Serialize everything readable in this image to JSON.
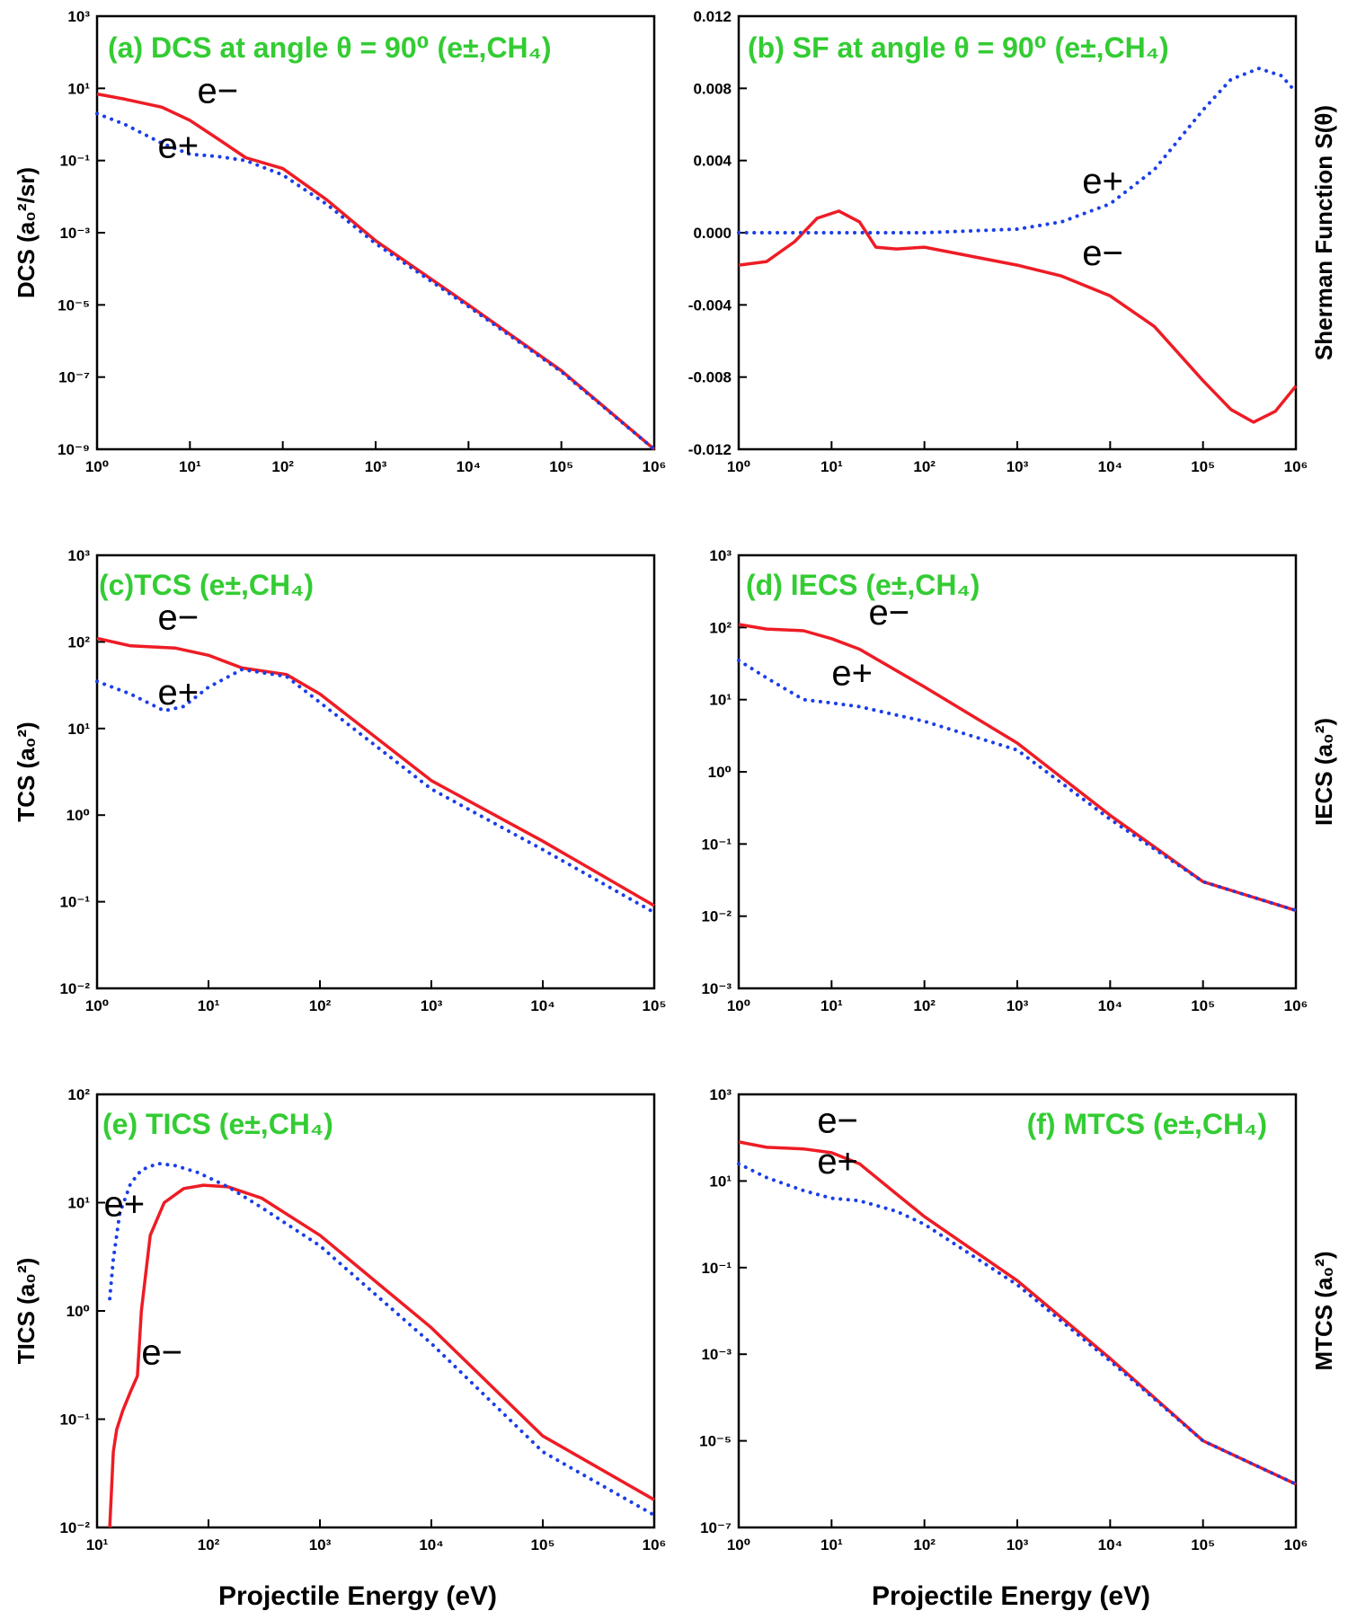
{
  "figure": {
    "x_axis_title": "Projectile Energy (eV)"
  },
  "colors": {
    "electron_line": "#ee1c25",
    "positron_line": "#1a3ee8",
    "title_green": "#33cc33",
    "theta_teal": "#1aa3a3"
  },
  "chart_data": [
    {
      "id": "a",
      "type": "line",
      "title": "(a) DCS at angle θ = 90⁰ (e±,CH₄)",
      "ylabel": "DCS (a₀²/sr)",
      "xlabel": "",
      "x_scale": "log",
      "y_scale": "log",
      "xlim": [
        1,
        1000000
      ],
      "ylim": [
        1e-09,
        1000
      ],
      "x_ticks": [
        1,
        10,
        100,
        1000,
        10000,
        100000,
        1000000
      ],
      "y_ticks": [
        1e-09,
        1e-07,
        1e-05,
        0.001,
        0.1,
        10,
        1000
      ],
      "series": [
        {
          "name": "e−",
          "style": "solid",
          "x": [
            1,
            2,
            5,
            10,
            20,
            40,
            100,
            300,
            1000,
            10000,
            100000,
            1000000
          ],
          "y": [
            7,
            5,
            3,
            1.3,
            0.4,
            0.12,
            0.06,
            0.008,
            0.0006,
            1e-05,
            1.5e-07,
            1e-09
          ]
        },
        {
          "name": "e+",
          "style": "dotted",
          "x": [
            1,
            2,
            5,
            10,
            20,
            40,
            100,
            300,
            1000,
            10000,
            100000,
            1000000
          ],
          "y": [
            2,
            1,
            0.3,
            0.15,
            0.13,
            0.1,
            0.04,
            0.006,
            0.0005,
            9e-06,
            1.4e-07,
            1e-09
          ]
        }
      ],
      "annotations": [
        {
          "text": "e−",
          "x": 12,
          "y": 4
        },
        {
          "text": "e+",
          "x": 4.5,
          "y": 0.12
        }
      ]
    },
    {
      "id": "b",
      "type": "line",
      "title": "(b) SF at angle θ = 90⁰ (e±,CH₄)",
      "ylabel": "Sherman Function S(θ)",
      "xlabel": "",
      "x_scale": "log",
      "y_scale": "linear",
      "xlim": [
        1,
        1000000
      ],
      "ylim": [
        -0.012,
        0.012
      ],
      "x_ticks": [
        1,
        10,
        100,
        1000,
        10000,
        100000,
        1000000
      ],
      "y_ticks": [
        -0.012,
        -0.008,
        -0.004,
        0.0,
        0.004,
        0.008,
        0.012
      ],
      "y_tick_labels": [
        "-0.012",
        "-0.008",
        "-0.004",
        "0.000",
        "0.004",
        "0.008",
        "0.012"
      ],
      "series": [
        {
          "name": "e−",
          "style": "solid",
          "x": [
            1,
            2,
            4,
            7,
            12,
            20,
            30,
            50,
            100,
            200,
            500,
            1000,
            3000,
            10000,
            30000,
            100000,
            200000,
            350000,
            600000,
            1000000
          ],
          "y": [
            -0.0018,
            -0.0016,
            -0.0005,
            0.0008,
            0.0012,
            0.0006,
            -0.0008,
            -0.0009,
            -0.0008,
            -0.0011,
            -0.0015,
            -0.0018,
            -0.0024,
            -0.0035,
            -0.0052,
            -0.0082,
            -0.0098,
            -0.0105,
            -0.0099,
            -0.0085
          ]
        },
        {
          "name": "e+",
          "style": "dotted",
          "x": [
            1,
            10,
            100,
            1000,
            3000,
            10000,
            30000,
            100000,
            200000,
            400000,
            700000,
            1000000
          ],
          "y": [
            0.0,
            0.0,
            0.0,
            0.0002,
            0.0006,
            0.0016,
            0.0035,
            0.0068,
            0.0085,
            0.0091,
            0.0087,
            0.0078
          ]
        }
      ],
      "annotations": [
        {
          "text": "e+",
          "x": 5000,
          "y": 0.0022
        },
        {
          "text": "e−",
          "x": 5000,
          "y": -0.0018
        }
      ]
    },
    {
      "id": "c",
      "type": "line",
      "title": "(c)TCS (e±,CH₄)",
      "ylabel": "TCS (a₀²)",
      "xlabel": "",
      "x_scale": "log",
      "y_scale": "log",
      "xlim": [
        1,
        100000
      ],
      "ylim": [
        0.01,
        1000
      ],
      "x_ticks": [
        1,
        10,
        100,
        1000,
        10000,
        100000
      ],
      "y_ticks": [
        0.01,
        0.1,
        1,
        10,
        100,
        1000
      ],
      "series": [
        {
          "name": "e−",
          "style": "solid",
          "x": [
            1,
            2,
            5,
            10,
            20,
            50,
            100,
            1000,
            10000,
            100000
          ],
          "y": [
            110,
            90,
            85,
            70,
            50,
            42,
            25,
            2.5,
            0.5,
            0.09
          ]
        },
        {
          "name": "e+",
          "style": "dotted",
          "x": [
            1,
            2,
            4,
            6,
            10,
            20,
            50,
            100,
            1000,
            10000,
            100000
          ],
          "y": [
            35,
            25,
            16,
            18,
            30,
            48,
            40,
            20,
            2,
            0.4,
            0.075
          ]
        }
      ],
      "annotations": [
        {
          "text": "e−",
          "x": 3.5,
          "y": 140
        },
        {
          "text": "e+",
          "x": 3.5,
          "y": 19
        }
      ]
    },
    {
      "id": "d",
      "type": "line",
      "title": "(d) IECS (e±,CH₄)",
      "ylabel": "IECS (a₀²)",
      "xlabel": "",
      "x_scale": "log",
      "y_scale": "log",
      "xlim": [
        1,
        1000000
      ],
      "ylim": [
        0.001,
        1000
      ],
      "x_ticks": [
        1,
        10,
        100,
        1000,
        10000,
        100000,
        1000000
      ],
      "y_ticks": [
        0.001,
        0.01,
        0.1,
        1,
        10,
        100,
        1000
      ],
      "series": [
        {
          "name": "e−",
          "style": "solid",
          "x": [
            1,
            2,
            5,
            10,
            20,
            100,
            1000,
            10000,
            100000,
            1000000
          ],
          "y": [
            110,
            95,
            90,
            70,
            50,
            15,
            2.5,
            0.25,
            0.03,
            0.012
          ]
        },
        {
          "name": "e+",
          "style": "dotted",
          "x": [
            1,
            2,
            5,
            10,
            20,
            100,
            1000,
            10000,
            100000,
            1000000
          ],
          "y": [
            35,
            20,
            10,
            9,
            8,
            5,
            2,
            0.22,
            0.03,
            0.012
          ]
        }
      ],
      "annotations": [
        {
          "text": "e−",
          "x": 25,
          "y": 110
        },
        {
          "text": "e+",
          "x": 10,
          "y": 16
        }
      ]
    },
    {
      "id": "e",
      "type": "line",
      "title": "(e) TICS (e±,CH₄)",
      "ylabel": "TICS (a₀²)",
      "xlabel": "Projectile Energy (eV)",
      "x_scale": "log",
      "y_scale": "log",
      "xlim": [
        10,
        1000000
      ],
      "ylim": [
        0.01,
        100
      ],
      "x_ticks": [
        10,
        100,
        1000,
        10000,
        100000,
        1000000
      ],
      "y_ticks": [
        0.01,
        0.1,
        1,
        10,
        100
      ],
      "series": [
        {
          "name": "e−",
          "style": "solid",
          "x": [
            13,
            14,
            15,
            17,
            20,
            23,
            25,
            30,
            40,
            60,
            90,
            150,
            300,
            1000,
            10000,
            100000,
            1000000
          ],
          "y": [
            0.01,
            0.05,
            0.08,
            0.12,
            0.18,
            0.25,
            1,
            5,
            10,
            13.5,
            14.5,
            14,
            11,
            5,
            0.7,
            0.07,
            0.018
          ]
        },
        {
          "name": "e+",
          "style": "dotted",
          "x": [
            13,
            14,
            16,
            20,
            25,
            35,
            50,
            80,
            150,
            300,
            1000,
            10000,
            100000,
            1000000
          ],
          "y": [
            1.3,
            3,
            8,
            15,
            20,
            23,
            22,
            19,
            14,
            9,
            4,
            0.5,
            0.05,
            0.013
          ]
        }
      ],
      "annotations": [
        {
          "text": "e+",
          "x": 11.5,
          "y": 7.5
        },
        {
          "text": "e−",
          "x": 25,
          "y": 0.32
        }
      ]
    },
    {
      "id": "f",
      "type": "line",
      "title": "(f) MTCS (e±,CH₄)",
      "ylabel": "MTCS (a₀²)",
      "xlabel": "Projectile Energy (eV)",
      "x_scale": "log",
      "y_scale": "log",
      "xlim": [
        1,
        1000000
      ],
      "ylim": [
        1e-07,
        1000
      ],
      "x_ticks": [
        1,
        10,
        100,
        1000,
        10000,
        100000,
        1000000
      ],
      "y_ticks": [
        1e-07,
        1e-05,
        0.001,
        0.1,
        10,
        1000
      ],
      "series": [
        {
          "name": "e−",
          "style": "solid",
          "x": [
            1,
            2,
            5,
            10,
            20,
            50,
            100,
            1000,
            10000,
            100000,
            1000000
          ],
          "y": [
            80,
            60,
            55,
            45,
            25,
            5,
            1.5,
            0.05,
            0.0008,
            1e-05,
            1e-06
          ]
        },
        {
          "name": "e+",
          "style": "dotted",
          "x": [
            1,
            2,
            5,
            10,
            20,
            50,
            100,
            1000,
            10000,
            100000,
            1000000
          ],
          "y": [
            25,
            12,
            6,
            4,
            3.5,
            2,
            1,
            0.04,
            0.0007,
            1e-05,
            1e-06
          ]
        }
      ],
      "annotations": [
        {
          "text": "e−",
          "x": 7,
          "y": 130
        },
        {
          "text": "e+",
          "x": 7,
          "y": 15
        }
      ]
    }
  ]
}
